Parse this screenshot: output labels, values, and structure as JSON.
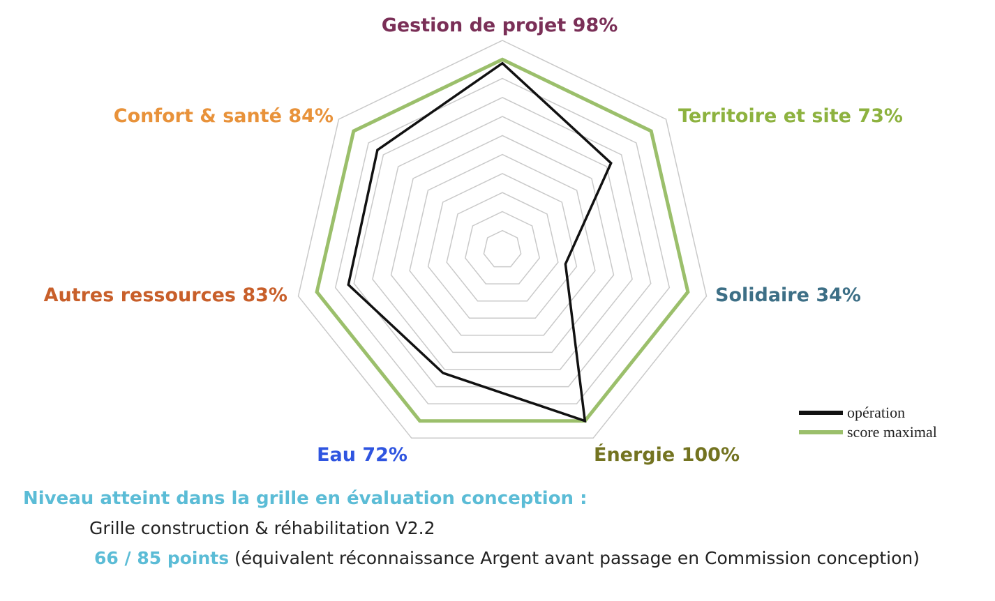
{
  "chart_data": {
    "type": "radar",
    "axes": [
      {
        "name": "Gestion de projet",
        "pct_label": "98%",
        "color": "#7a2f57"
      },
      {
        "name": "Territoire et site",
        "pct_label": "73%",
        "color": "#8db23f"
      },
      {
        "name": "Solidaire",
        "pct_label": "34%",
        "color": "#3d6f86"
      },
      {
        "name": "Énergie",
        "pct_label": "100%",
        "color": "#737320"
      },
      {
        "name": "Eau",
        "pct_label": "72%",
        "color": "#2f55e0"
      },
      {
        "name": "Autres ressources",
        "pct_label": "83%",
        "color": "#c85f2a"
      },
      {
        "name": "Confort & santé",
        "pct_label": "84%",
        "color": "#e8923a"
      }
    ],
    "series": [
      {
        "name": "opération",
        "values": [
          98,
          73,
          34,
          100,
          72,
          83,
          84
        ],
        "color": "#111111"
      },
      {
        "name": "score maximal",
        "values": [
          100,
          100,
          100,
          100,
          100,
          100,
          100
        ],
        "color": "#9bbf6b"
      }
    ],
    "rmax": 110,
    "grid_levels": [
      10,
      20,
      30,
      40,
      50,
      60,
      70,
      80,
      90,
      100,
      110
    ],
    "legend_position": "bottom-right"
  },
  "footer": {
    "title": "Niveau atteint dans la grille en évaluation conception :",
    "grid_name": "Grille construction & réhabilitation V2.2",
    "points": "66 / 85 points",
    "note": " (équivalent réconnaissance Argent avant passage en Commission conception)"
  }
}
